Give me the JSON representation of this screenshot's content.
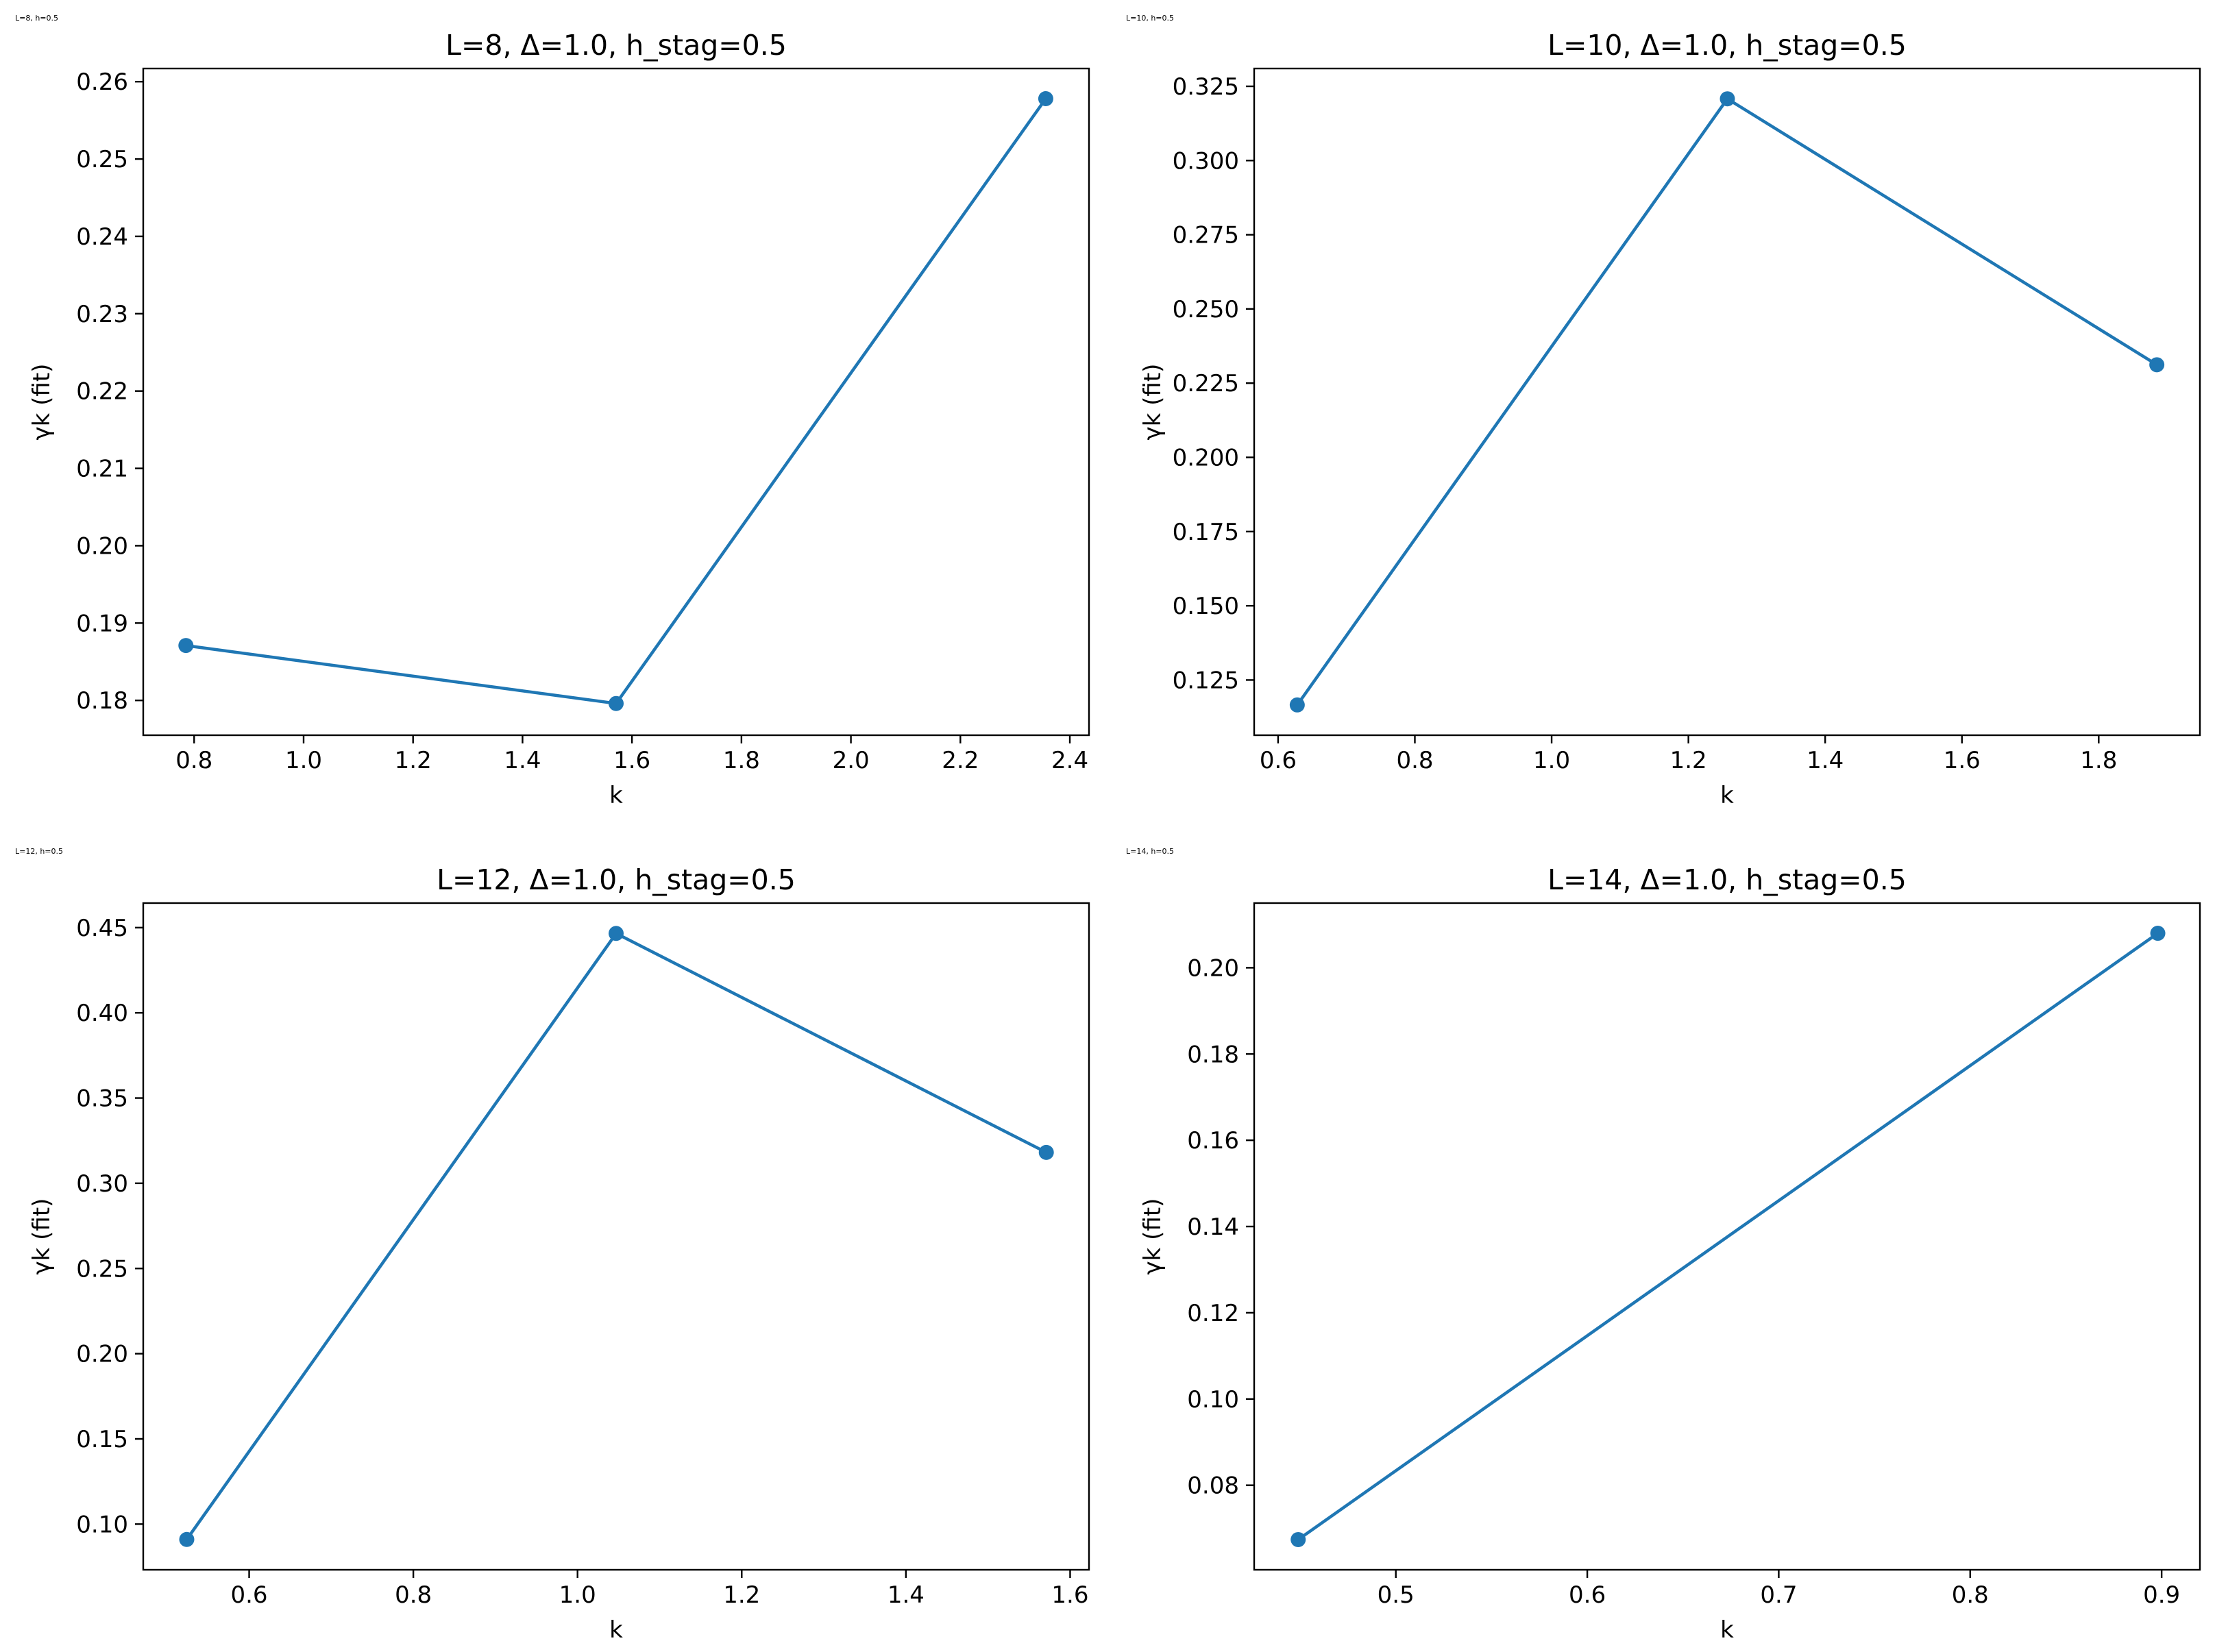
{
  "figure": {
    "panels": [
      {
        "corner_note": "L=8, h=0.5",
        "chart_data": {
          "type": "line",
          "title": "L=8, Δ=1.0, h_stag=0.5",
          "xlabel": "k",
          "ylabel": "γk (fit)",
          "x": [
            0.785,
            1.571,
            2.356
          ],
          "series": [
            {
              "values": [
                0.1871,
                0.1796,
                0.2578
              ],
              "color": "#1f77b4",
              "marker": "circle"
            }
          ],
          "xlim": [
            0.707,
            2.435
          ],
          "ylim": [
            0.1755,
            0.2617
          ],
          "xticks": [
            0.8,
            1.0,
            1.2,
            1.4,
            1.6,
            1.8,
            2.0,
            2.2,
            2.4
          ],
          "xtick_labels": [
            "0.8",
            "1.0",
            "1.2",
            "1.4",
            "1.6",
            "1.8",
            "2.0",
            "2.2",
            "2.4"
          ],
          "yticks": [
            0.18,
            0.19,
            0.2,
            0.21,
            0.22,
            0.23,
            0.24,
            0.25,
            0.26
          ],
          "ytick_labels": [
            "0.18",
            "0.19",
            "0.20",
            "0.21",
            "0.22",
            "0.23",
            "0.24",
            "0.25",
            "0.26"
          ],
          "grid": false,
          "legend": "none"
        }
      },
      {
        "corner_note": "L=10, h=0.5",
        "chart_data": {
          "type": "line",
          "title": "L=10, Δ=1.0, h_stag=0.5",
          "xlabel": "k",
          "ylabel": "γk (fit)",
          "x": [
            0.628,
            1.257,
            1.885
          ],
          "series": [
            {
              "values": [
                0.1166,
                0.3208,
                0.2312
              ],
              "color": "#1f77b4",
              "marker": "circle"
            }
          ],
          "xlim": [
            0.565,
            1.948
          ],
          "ylim": [
            0.1064,
            0.331
          ],
          "xticks": [
            0.6,
            0.8,
            1.0,
            1.2,
            1.4,
            1.6,
            1.8
          ],
          "xtick_labels": [
            "0.6",
            "0.8",
            "1.0",
            "1.2",
            "1.4",
            "1.6",
            "1.8"
          ],
          "yticks": [
            0.125,
            0.15,
            0.175,
            0.2,
            0.225,
            0.25,
            0.275,
            0.3,
            0.325
          ],
          "ytick_labels": [
            "0.125",
            "0.150",
            "0.175",
            "0.200",
            "0.225",
            "0.250",
            "0.275",
            "0.300",
            "0.325"
          ],
          "grid": false,
          "legend": "none"
        }
      },
      {
        "corner_note": "L=12, h=0.5",
        "chart_data": {
          "type": "line",
          "title": "L=12, Δ=1.0, h_stag=0.5",
          "xlabel": "k",
          "ylabel": "γk (fit)",
          "x": [
            0.524,
            1.047,
            1.571
          ],
          "series": [
            {
              "values": [
                0.091,
                0.4466,
                0.3181
              ],
              "color": "#1f77b4",
              "marker": "circle"
            }
          ],
          "xlim": [
            0.471,
            1.623
          ],
          "ylim": [
            0.0732,
            0.4644
          ],
          "xticks": [
            0.6,
            0.8,
            1.0,
            1.2,
            1.4,
            1.6
          ],
          "xtick_labels": [
            "0.6",
            "0.8",
            "1.0",
            "1.2",
            "1.4",
            "1.6"
          ],
          "yticks": [
            0.1,
            0.15,
            0.2,
            0.25,
            0.3,
            0.35,
            0.4,
            0.45
          ],
          "ytick_labels": [
            "0.10",
            "0.15",
            "0.20",
            "0.25",
            "0.30",
            "0.35",
            "0.40",
            "0.45"
          ],
          "grid": false,
          "legend": "none"
        }
      },
      {
        "corner_note": "L=14, h=0.5",
        "chart_data": {
          "type": "line",
          "title": "L=14, Δ=1.0, h_stag=0.5",
          "xlabel": "k",
          "ylabel": "γk (fit)",
          "x": [
            0.449,
            0.898
          ],
          "series": [
            {
              "values": [
                0.0674,
                0.208
              ],
              "color": "#1f77b4",
              "marker": "circle"
            }
          ],
          "xlim": [
            0.426,
            0.92
          ],
          "ylim": [
            0.0604,
            0.215
          ],
          "xticks": [
            0.5,
            0.6,
            0.7,
            0.8,
            0.9
          ],
          "xtick_labels": [
            "0.5",
            "0.6",
            "0.7",
            "0.8",
            "0.9"
          ],
          "yticks": [
            0.08,
            0.1,
            0.12,
            0.14,
            0.16,
            0.18,
            0.2
          ],
          "ytick_labels": [
            "0.08",
            "0.10",
            "0.12",
            "0.14",
            "0.16",
            "0.18",
            "0.20"
          ],
          "grid": false,
          "legend": "none"
        }
      }
    ]
  }
}
